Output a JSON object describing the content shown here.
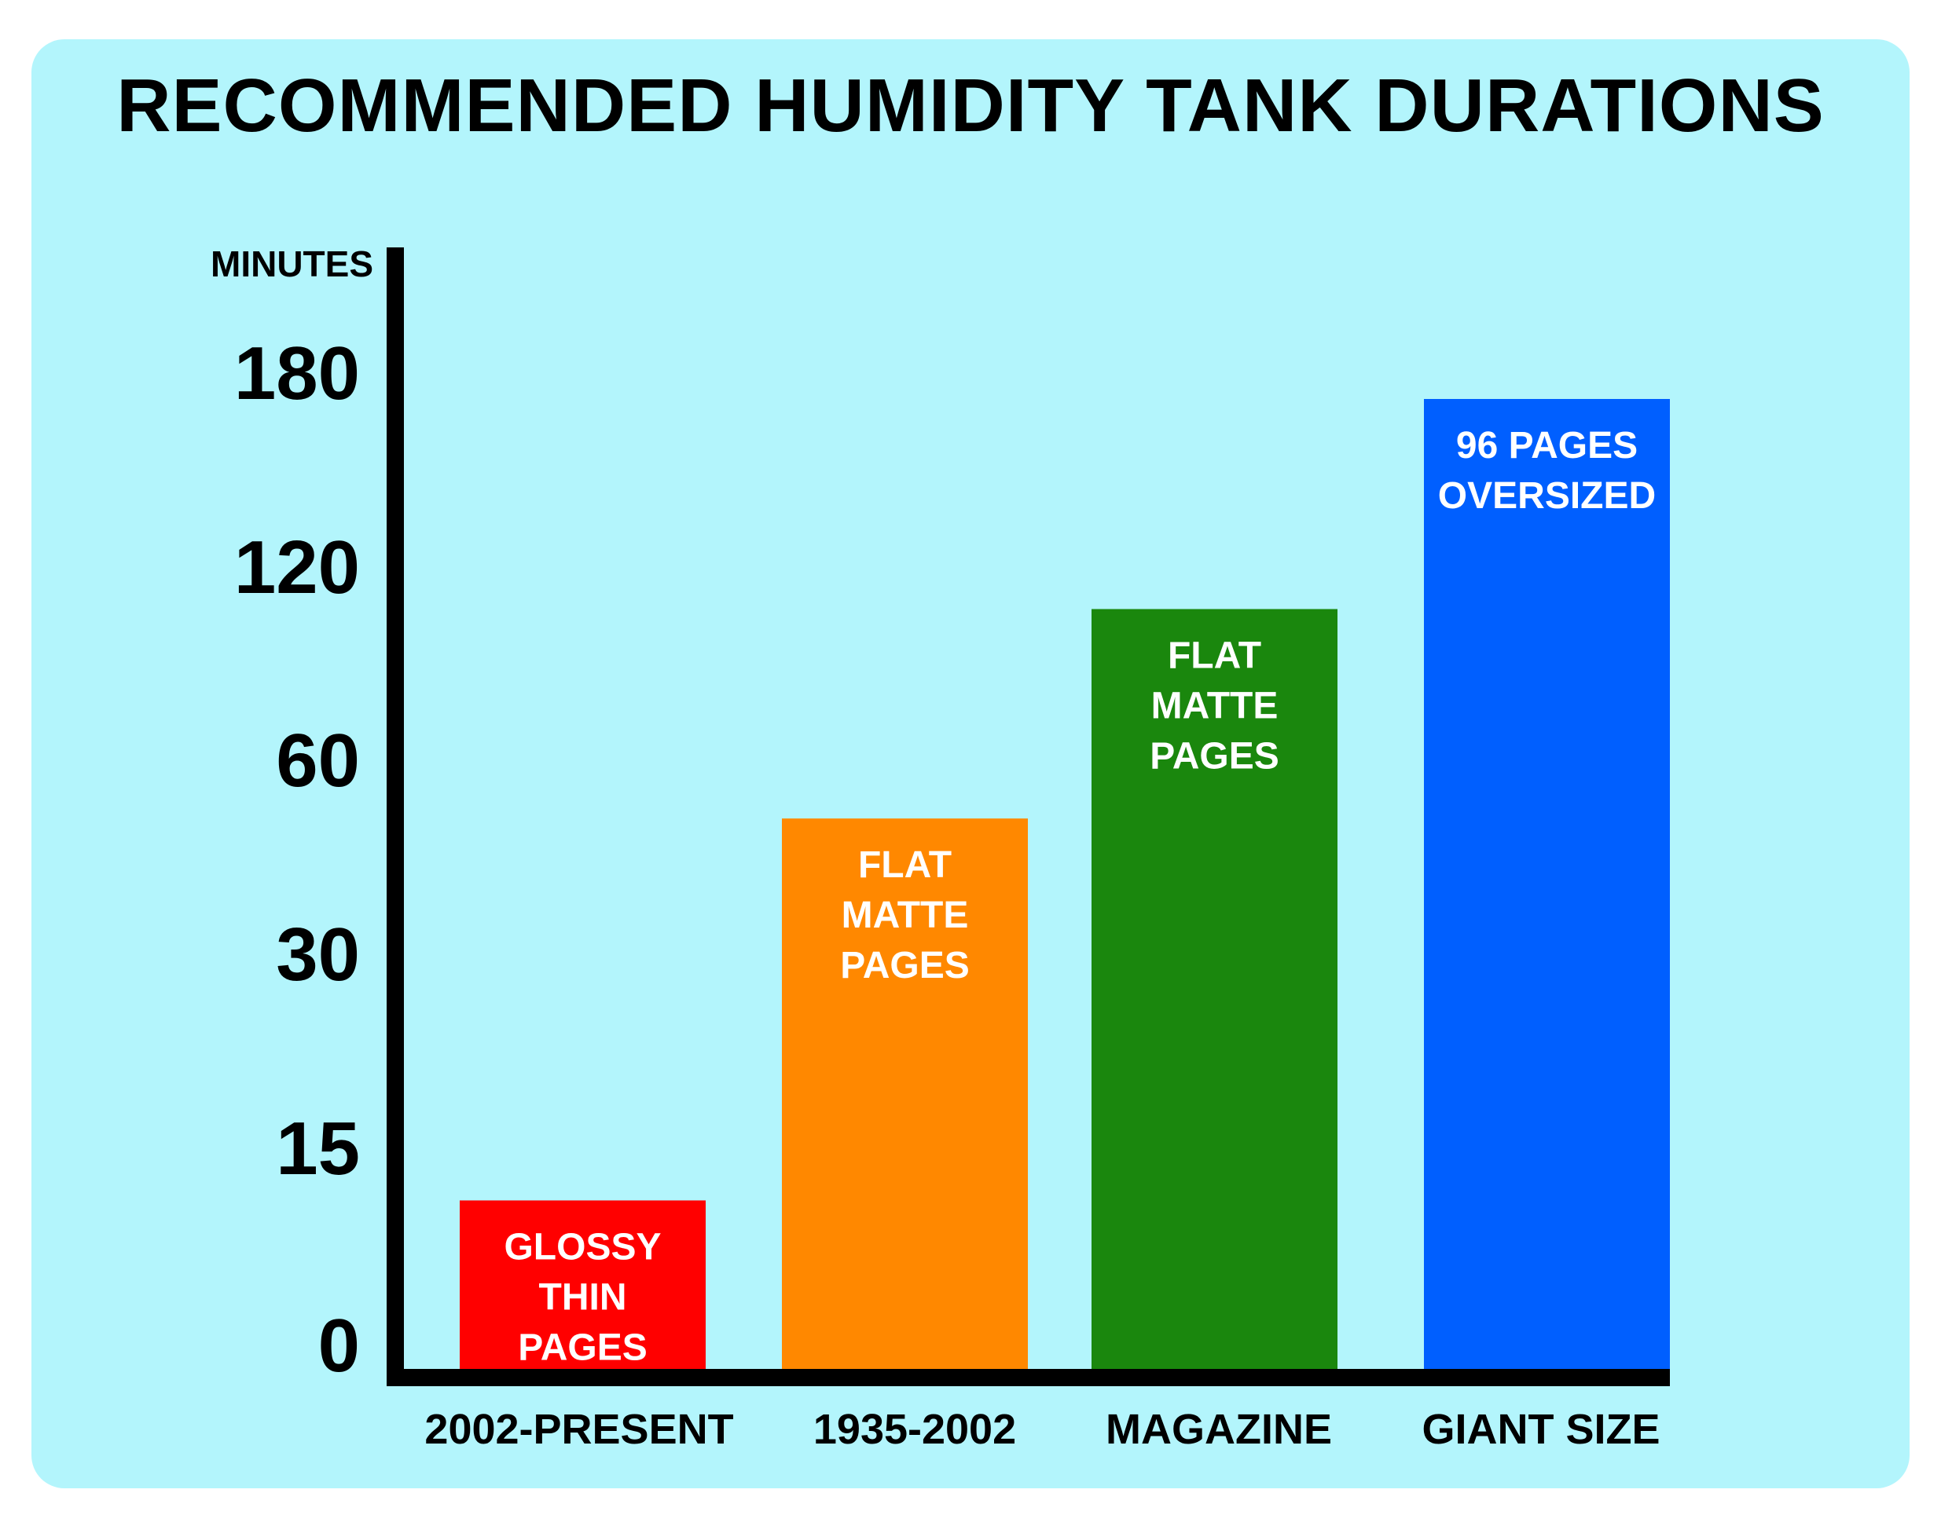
{
  "colors": {
    "background": "#b3f5fc",
    "axis": "#000000",
    "bar_label": "#ffffff"
  },
  "chart_data": {
    "type": "bar",
    "title": "RECOMMENDED HUMIDITY TANK DURATIONS",
    "ylabel": "MINUTES",
    "xlabel": "",
    "y_ticks": [
      "0",
      "15",
      "30",
      "60",
      "120",
      "180"
    ],
    "scale": "ordinal-spaced ticks (0, 15, 30, 60, 120, 180 evenly spaced)",
    "categories": [
      "2002-PRESENT",
      "1935-2002",
      "MAGAZINE",
      "GIANT SIZE"
    ],
    "values": [
      13,
      55,
      115,
      180
    ],
    "bar_labels": [
      [
        "GLOSSY",
        "THIN",
        "PAGES"
      ],
      [
        "FLAT",
        "MATTE",
        "PAGES"
      ],
      [
        "FLAT",
        "MATTE",
        "PAGES"
      ],
      [
        "96 PAGES",
        "OVERSIZED"
      ]
    ],
    "bar_colors": [
      "#ff0000",
      "#ff8800",
      "#1a870d",
      "#005fff"
    ],
    "grid": false,
    "legend": "none"
  }
}
